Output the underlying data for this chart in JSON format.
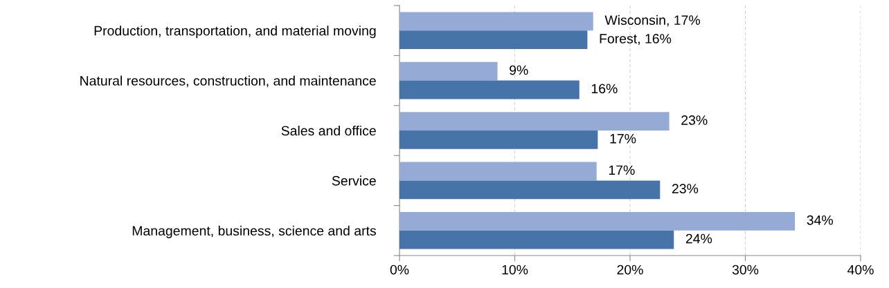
{
  "chart_data": {
    "type": "bar",
    "orientation": "horizontal",
    "categories": [
      "Production, transportation, and material moving",
      "Natural resources, construction, and maintenance",
      "Sales and office",
      "Service",
      "Management, business, science and arts"
    ],
    "series": [
      {
        "color": "#95abd5",
        "values": [
          16.8,
          8.5,
          23.4,
          17.1,
          34.3
        ],
        "value_labels": [
          "Wisconsin, 17%",
          "9%",
          "23%",
          "17%",
          "34%"
        ]
      },
      {
        "color": "#4674a8",
        "values": [
          16.3,
          15.6,
          17.2,
          22.6,
          23.8
        ],
        "value_labels": [
          "Forest, 16%",
          "16%",
          "17%",
          "23%",
          "24%"
        ]
      }
    ],
    "xlim": [
      0,
      40
    ],
    "xticks": [
      {
        "value": 0,
        "label": "0%"
      },
      {
        "value": 10,
        "label": "10%"
      },
      {
        "value": 20,
        "label": "20%"
      },
      {
        "value": 30,
        "label": "30%"
      },
      {
        "value": 40,
        "label": "40%"
      }
    ],
    "grid": "x",
    "legend": false
  }
}
